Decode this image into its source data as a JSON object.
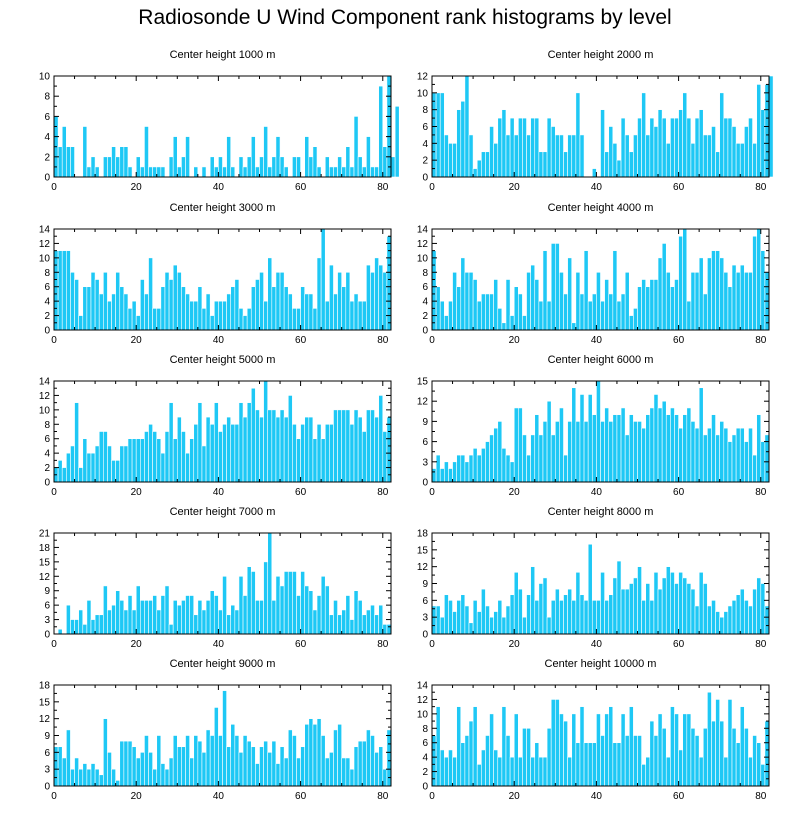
{
  "title": "Radiosonde U Wind Component rank histograms by level",
  "colors": {
    "bar": "#1ec8f5",
    "bar_edge": "#ffffff",
    "axis": "#000000"
  },
  "chart_data": [
    {
      "type": "bar",
      "title": "Center height 1000 m",
      "xlim": [
        0,
        82
      ],
      "ylim": [
        0,
        10
      ],
      "yticks": [
        0,
        2,
        4,
        6,
        8,
        10
      ],
      "xticks": [
        0,
        20,
        40,
        60,
        80
      ],
      "values": [
        6,
        3,
        5,
        3,
        3,
        0,
        0,
        5,
        1,
        2,
        1,
        0,
        2,
        2,
        3,
        2,
        3,
        3,
        1,
        0,
        2,
        1,
        5,
        1,
        1,
        1,
        1,
        0,
        2,
        4,
        1,
        2,
        4,
        0,
        1,
        0,
        1,
        0,
        2,
        1,
        2,
        1,
        4,
        1,
        0,
        2,
        1,
        2,
        4,
        1,
        2,
        5,
        1,
        2,
        4,
        2,
        1,
        0,
        2,
        2,
        0,
        4,
        2,
        3,
        1,
        0,
        2,
        1,
        1,
        2,
        1,
        3,
        1,
        6,
        2,
        1,
        4,
        1,
        1,
        9,
        3,
        10,
        2,
        7
      ]
    },
    {
      "type": "bar",
      "title": "Center height 2000 m",
      "xlim": [
        0,
        82
      ],
      "ylim": [
        0,
        12
      ],
      "yticks": [
        0,
        2,
        4,
        6,
        8,
        10,
        12
      ],
      "xticks": [
        0,
        20,
        40,
        60,
        80
      ],
      "values": [
        10,
        10,
        10,
        5,
        4,
        4,
        8,
        9,
        12,
        5,
        1,
        2,
        3,
        3,
        6,
        4,
        7,
        8,
        5,
        7,
        5,
        7,
        7,
        5,
        7,
        7,
        3,
        3,
        7,
        6,
        5,
        5,
        3,
        5,
        5,
        10,
        5,
        0,
        0,
        1,
        0,
        8,
        3,
        6,
        4,
        2,
        7,
        5,
        3,
        5,
        7,
        10,
        5,
        7,
        6,
        8,
        7,
        4,
        7,
        7,
        8,
        10,
        7,
        4,
        7,
        8,
        5,
        5,
        6,
        3,
        10,
        7,
        7,
        6,
        4,
        4,
        6,
        7,
        4,
        11,
        8,
        11,
        12
      ]
    },
    {
      "type": "bar",
      "title": "Center height 3000 m",
      "xlim": [
        0,
        82
      ],
      "ylim": [
        0,
        14
      ],
      "yticks": [
        0,
        2,
        4,
        6,
        8,
        10,
        12,
        14
      ],
      "xticks": [
        0,
        20,
        40,
        60,
        80
      ],
      "values": [
        11,
        11,
        11,
        11,
        8,
        7,
        2,
        6,
        6,
        8,
        7,
        5,
        8,
        4,
        5,
        8,
        6,
        5,
        3,
        4,
        2,
        7,
        5,
        10,
        3,
        3,
        6,
        8,
        7,
        9,
        8,
        6,
        5,
        4,
        4,
        6,
        3,
        5,
        2,
        4,
        4,
        4,
        5,
        6,
        7,
        3,
        2,
        3,
        6,
        7,
        8,
        4,
        10,
        6,
        8,
        8,
        6,
        5,
        3,
        3,
        6,
        5,
        5,
        3,
        10,
        14,
        4,
        9,
        5,
        8,
        6,
        8,
        4,
        5,
        4,
        4,
        9,
        8,
        10,
        9,
        8,
        13
      ]
    },
    {
      "type": "bar",
      "title": "Center height 4000 m",
      "xlim": [
        0,
        82
      ],
      "ylim": [
        0,
        14
      ],
      "yticks": [
        0,
        2,
        4,
        6,
        8,
        10,
        12,
        14
      ],
      "xticks": [
        0,
        20,
        40,
        60,
        80
      ],
      "values": [
        11,
        6,
        4,
        2,
        4,
        8,
        6,
        10,
        8,
        8,
        7,
        4,
        5,
        5,
        5,
        7,
        3,
        1,
        7,
        2,
        6,
        5,
        2,
        8,
        9,
        7,
        4,
        11,
        4,
        12,
        12,
        8,
        5,
        10,
        1,
        8,
        5,
        11,
        4,
        5,
        8,
        4,
        7,
        5,
        11,
        4,
        5,
        8,
        2,
        3,
        6,
        7,
        6,
        7,
        7,
        10,
        12,
        8,
        6,
        7,
        13,
        14,
        4,
        8,
        8,
        10,
        5,
        10,
        11,
        11,
        10,
        8,
        6,
        9,
        8,
        9,
        8,
        8,
        13,
        14,
        11,
        8
      ]
    },
    {
      "type": "bar",
      "title": "Center height 5000 m",
      "xlim": [
        0,
        82
      ],
      "ylim": [
        0,
        14
      ],
      "yticks": [
        0,
        2,
        4,
        6,
        8,
        10,
        12,
        14
      ],
      "xticks": [
        0,
        20,
        40,
        60,
        80
      ],
      "values": [
        2,
        3,
        2,
        4,
        5,
        11,
        2,
        6,
        4,
        4,
        5,
        7,
        7,
        5,
        3,
        3,
        5,
        5,
        6,
        6,
        6,
        6,
        7,
        8,
        7,
        6,
        4,
        7,
        11,
        6,
        9,
        7,
        4,
        6,
        8,
        11,
        5,
        9,
        8,
        11,
        7,
        8,
        9,
        8,
        8,
        11,
        9,
        11,
        13,
        10,
        9,
        14,
        10,
        10,
        9,
        10,
        9,
        12,
        8,
        6,
        8,
        9,
        9,
        6,
        8,
        6,
        8,
        8,
        10,
        10,
        10,
        10,
        8,
        10,
        9,
        7,
        10,
        10,
        9,
        12,
        7,
        9
      ]
    },
    {
      "type": "bar",
      "title": "Center height 6000 m",
      "xlim": [
        0,
        82
      ],
      "ylim": [
        0,
        15
      ],
      "yticks": [
        0,
        3,
        6,
        9,
        12,
        15
      ],
      "xticks": [
        0,
        20,
        40,
        60,
        80
      ],
      "values": [
        2,
        4,
        2,
        3,
        2,
        3,
        4,
        4,
        3,
        4,
        5,
        4,
        5,
        6,
        7,
        8,
        9,
        5,
        4,
        3,
        11,
        11,
        7,
        4,
        7,
        10,
        7,
        9,
        12,
        7,
        9,
        11,
        4,
        9,
        14,
        9,
        13,
        9,
        13,
        10,
        15,
        9,
        11,
        9,
        10,
        10,
        11,
        7,
        10,
        9,
        9,
        8,
        10,
        11,
        13,
        11,
        12,
        10,
        11,
        10,
        8,
        10,
        11,
        9,
        8,
        14,
        7,
        8,
        10,
        7,
        9,
        8,
        6,
        7,
        8,
        8,
        6,
        8,
        4,
        10,
        6,
        7
      ]
    },
    {
      "type": "bar",
      "title": "Center height 7000 m",
      "xlim": [
        0,
        82
      ],
      "ylim": [
        0,
        21
      ],
      "yticks": [
        0,
        3,
        6,
        9,
        12,
        15,
        18,
        21
      ],
      "xticks": [
        0,
        20,
        40,
        60,
        80
      ],
      "values": [
        0,
        1,
        0,
        6,
        3,
        3,
        5,
        2,
        7,
        3,
        4,
        4,
        10,
        5,
        6,
        9,
        7,
        5,
        8,
        5,
        10,
        7,
        7,
        7,
        8,
        5,
        8,
        10,
        2,
        7,
        6,
        7,
        8,
        8,
        4,
        7,
        5,
        7,
        9,
        8,
        5,
        12,
        4,
        6,
        5,
        12,
        8,
        14,
        13,
        7,
        7,
        15,
        21,
        7,
        12,
        10,
        13,
        13,
        13,
        8,
        13,
        10,
        9,
        5,
        8,
        12,
        10,
        4,
        7,
        4,
        5,
        8,
        3,
        9,
        7,
        4,
        5,
        6,
        4,
        6,
        2,
        2
      ]
    },
    {
      "type": "bar",
      "title": "Center height 8000 m",
      "xlim": [
        0,
        82
      ],
      "ylim": [
        0,
        18
      ],
      "yticks": [
        0,
        3,
        6,
        9,
        12,
        15,
        18
      ],
      "xticks": [
        0,
        20,
        40,
        60,
        80
      ],
      "values": [
        5,
        5,
        3,
        7,
        6,
        4,
        6,
        7,
        5,
        2,
        6,
        4,
        8,
        5,
        3,
        4,
        6,
        3,
        5,
        7,
        11,
        8,
        3,
        7,
        12,
        6,
        9,
        10,
        3,
        6,
        8,
        6,
        7,
        8,
        6,
        11,
        7,
        6,
        16,
        6,
        6,
        11,
        6,
        7,
        10,
        13,
        8,
        8,
        9,
        10,
        12,
        6,
        9,
        6,
        11,
        8,
        10,
        12,
        11,
        9,
        11,
        10,
        9,
        8,
        5,
        11,
        9,
        5,
        6,
        4,
        3,
        4,
        5,
        6,
        7,
        8,
        6,
        5,
        8,
        10,
        9,
        5
      ]
    },
    {
      "type": "bar",
      "title": "Center height 9000 m",
      "xlim": [
        0,
        82
      ],
      "ylim": [
        0,
        18
      ],
      "yticks": [
        0,
        3,
        6,
        9,
        12,
        15,
        18
      ],
      "xticks": [
        0,
        20,
        40,
        60,
        80
      ],
      "values": [
        7,
        7,
        5,
        10,
        3,
        5,
        3,
        4,
        3,
        4,
        3,
        2,
        12,
        6,
        3,
        1,
        8,
        8,
        8,
        7,
        5,
        6,
        9,
        6,
        3,
        9,
        4,
        3,
        5,
        9,
        7,
        7,
        9,
        5,
        9,
        8,
        6,
        10,
        9,
        14,
        9,
        17,
        7,
        11,
        9,
        6,
        9,
        8,
        7,
        4,
        7,
        8,
        6,
        8,
        4,
        7,
        5,
        10,
        9,
        5,
        7,
        11,
        12,
        11,
        12,
        9,
        5,
        6,
        10,
        11,
        5,
        5,
        3,
        7,
        8,
        8,
        10,
        9,
        6,
        7,
        3,
        10
      ]
    },
    {
      "type": "bar",
      "title": "Center height 10000 m",
      "xlim": [
        0,
        82
      ],
      "ylim": [
        0,
        14
      ],
      "yticks": [
        0,
        2,
        4,
        6,
        8,
        10,
        12,
        14
      ],
      "xticks": [
        0,
        20,
        40,
        60,
        80
      ],
      "values": [
        7,
        11,
        5,
        4,
        5,
        4,
        11,
        6,
        7,
        9,
        11,
        3,
        5,
        7,
        10,
        5,
        4,
        11,
        7,
        4,
        10,
        4,
        8,
        8,
        4,
        6,
        4,
        4,
        8,
        12,
        12,
        10,
        9,
        4,
        10,
        6,
        11,
        6,
        6,
        6,
        10,
        7,
        10,
        11,
        6,
        6,
        10,
        7,
        11,
        7,
        7,
        3,
        4,
        9,
        7,
        10,
        8,
        4,
        11,
        10,
        5,
        10,
        10,
        8,
        7,
        4,
        8,
        13,
        9,
        12,
        9,
        4,
        12,
        8,
        6,
        11,
        8,
        4,
        7,
        6,
        3,
        9
      ]
    }
  ]
}
